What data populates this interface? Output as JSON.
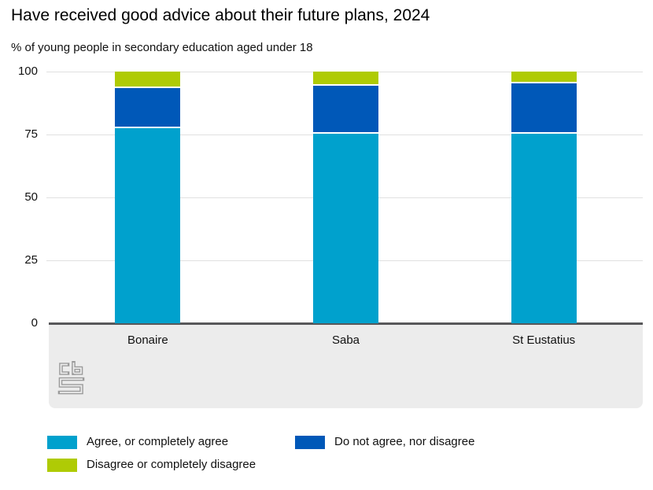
{
  "title": "Have received good advice about their future plans, 2024",
  "subtitle": "% of young people in secondary education aged under 18",
  "colors": {
    "agree": "#00a1cd",
    "neither": "#0058b8",
    "disagree": "#afcb05",
    "gridline": "#e0e0e0",
    "axis_line": "#58585a",
    "footer_band": "#ececec",
    "logo_gray": "#9b9b9b"
  },
  "chart_data": {
    "type": "bar",
    "stacked": true,
    "title": "Have received good advice about their future plans, 2024",
    "subtitle": "% of young people in secondary education aged under 18",
    "categories": [
      "Bonaire",
      "Saba",
      "St Eustatius"
    ],
    "series": [
      {
        "name": "Agree, or completely agree",
        "color_key": "agree",
        "values": [
          78,
          76,
          76
        ]
      },
      {
        "name": "Do not agree, nor disagree",
        "color_key": "neither",
        "values": [
          16,
          19,
          20
        ]
      },
      {
        "name": "Disagree or completely disagree",
        "color_key": "disagree",
        "values": [
          6,
          5,
          4
        ]
      }
    ],
    "xlabel": "",
    "ylabel": "",
    "ylim": [
      0,
      100
    ],
    "yticks": [
      0,
      25,
      50,
      75,
      100
    ],
    "grid": true,
    "legend_position": "bottom"
  },
  "legend": {
    "items": [
      {
        "label": "Agree, or completely agree",
        "color_key": "agree"
      },
      {
        "label": "Do not agree, nor disagree",
        "color_key": "neither"
      },
      {
        "label": "Disagree or completely disagree",
        "color_key": "disagree"
      }
    ]
  },
  "logo": {
    "name": "cbs-logo"
  }
}
